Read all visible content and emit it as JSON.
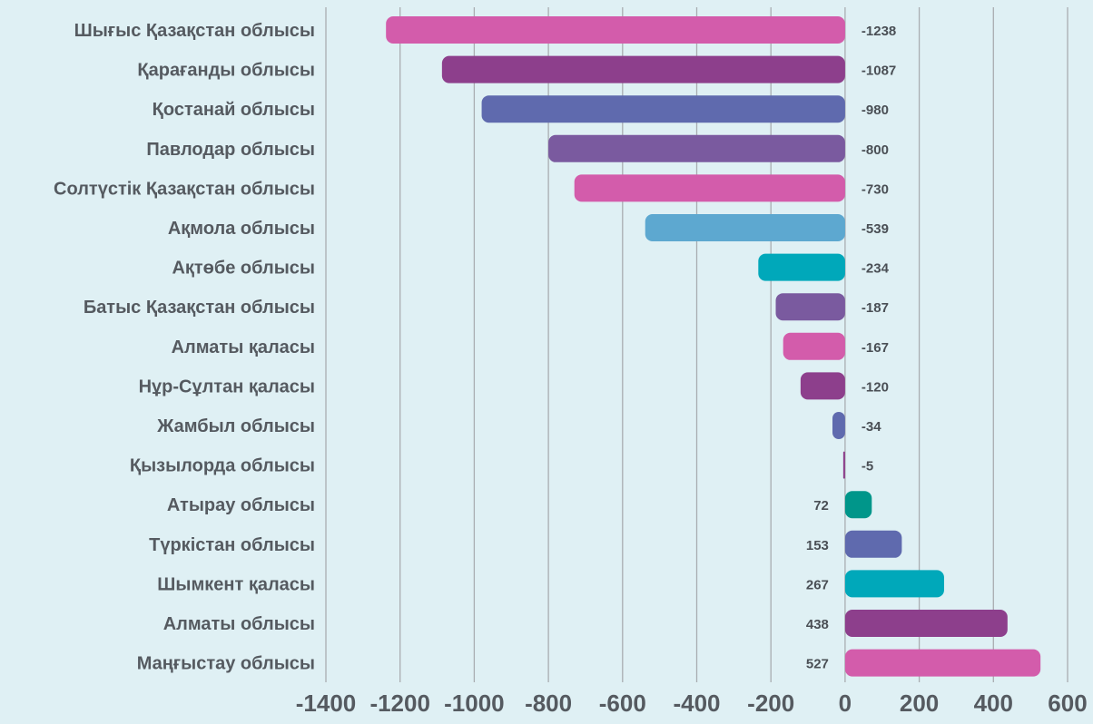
{
  "chart_data": {
    "type": "bar",
    "orientation": "horizontal",
    "categories": [
      "Шығыс Қазақстан облысы",
      "Қарағанды облысы",
      "Қостанай облысы",
      "Павлодар облысы",
      "Солтүстік Қазақстан облысы",
      "Ақмола облысы",
      "Ақтөбе облысы",
      "Батыс Қазақстан облысы",
      "Алматы қаласы",
      "Нұр-Сұлтан қаласы",
      "Жамбыл облысы",
      "Қызылорда облысы",
      "Атырау облысы",
      "Түркістан облысы",
      "Шымкент қаласы",
      "Алматы облысы",
      "Маңғыстау облысы"
    ],
    "values": [
      -1238,
      -1087,
      -980,
      -800,
      -730,
      -539,
      -234,
      -187,
      -167,
      -120,
      -34,
      -5,
      72,
      153,
      267,
      438,
      527
    ],
    "value_labels": [
      "-1238",
      "-1087",
      "-980",
      "-800",
      "-730",
      "-539",
      "-234",
      "-187",
      "-167",
      "-120",
      "-34",
      "-5",
      "72",
      "153",
      "267",
      "438",
      "527"
    ],
    "colors": [
      "#d35cab",
      "#8d3f8c",
      "#5f6aae",
      "#7a5a9f",
      "#d35cab",
      "#5da8d0",
      "#00a8ba",
      "#7a5a9f",
      "#d35cab",
      "#8d3f8c",
      "#5f6aae",
      "#8d3f8c",
      "#00968a",
      "#5f6aae",
      "#00a8ba",
      "#8d3f8c",
      "#d35cab"
    ],
    "xlim": [
      -1400,
      600
    ],
    "xticks": [
      -1400,
      -1200,
      -1000,
      -800,
      -600,
      -400,
      -200,
      0,
      200,
      400,
      600
    ],
    "xtick_labels": [
      "-1400",
      "-1200",
      "-1000",
      "-800",
      "-600",
      "-400",
      "-200",
      "0",
      "200",
      "400",
      "600"
    ],
    "grid": "vertical",
    "title": "",
    "xlabel": "",
    "ylabel": ""
  }
}
